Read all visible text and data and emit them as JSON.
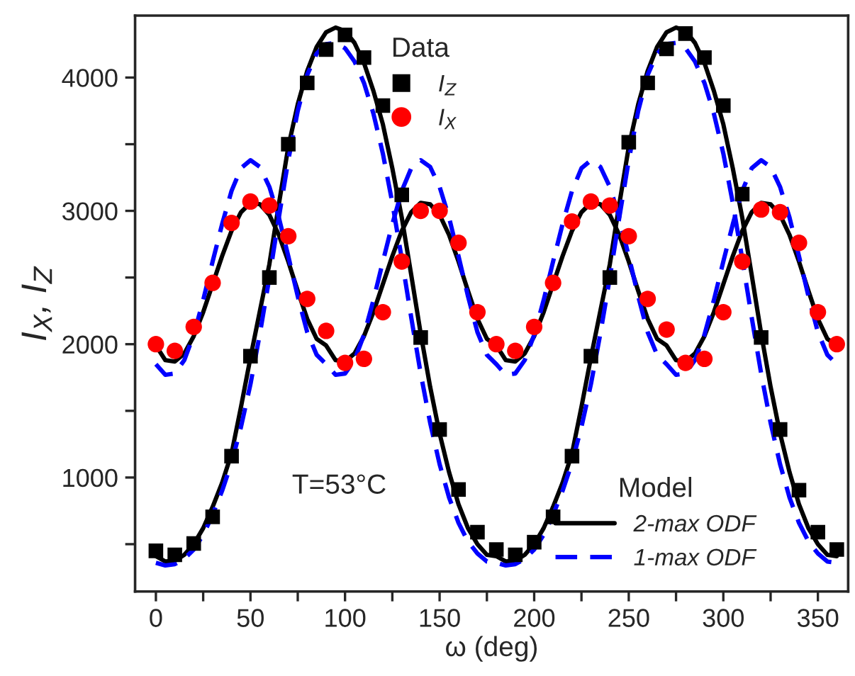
{
  "chart_data": {
    "type": "scatter",
    "xlabel": "ω (deg)",
    "ylabel": "I$_{X}$, I$_{Z}$",
    "annotations": [
      "T=53°C"
    ],
    "xlim": [
      -11,
      366
    ],
    "ylim": [
      145,
      4465
    ],
    "xticks": [
      0,
      {
        "value": 25,
        "label": null
      },
      50,
      {
        "value": 75,
        "label": null
      },
      100,
      {
        "value": 125,
        "label": null
      },
      150,
      {
        "value": 175,
        "label": null
      },
      200,
      {
        "value": 225,
        "label": null
      },
      250,
      {
        "value": 275,
        "label": null
      },
      300,
      {
        "value": 325,
        "label": null
      },
      350
    ],
    "yticks": [
      {
        "value": 500,
        "label": null
      },
      1000,
      {
        "value": 1500,
        "label": null
      },
      2000,
      {
        "value": 2500,
        "label": null
      },
      3000,
      {
        "value": 3500,
        "label": null
      },
      4000
    ],
    "legend": [
      "top",
      "bottom right"
    ],
    "legend_title": [
      "Data",
      "Model"
    ],
    "grid": false,
    "series": [
      {
        "name": "I$_{Z}$",
        "marker": "square",
        "color": "#000000",
        "x": [
          0,
          10,
          20,
          30,
          40,
          50,
          60,
          70,
          80,
          90,
          100,
          110,
          120,
          130,
          140,
          150,
          160,
          170,
          180,
          190,
          200,
          210,
          220,
          230,
          240,
          250,
          260,
          270,
          280,
          290,
          300,
          310,
          320,
          330,
          340,
          350,
          360
        ],
        "values": [
          450,
          420,
          505,
          705,
          1160,
          1910,
          2500,
          3500,
          3960,
          4210,
          4320,
          4150,
          3790,
          3120,
          2050,
          1360,
          910,
          590,
          460,
          420,
          515,
          705,
          1160,
          1910,
          2500,
          3515,
          3960,
          4215,
          4330,
          4150,
          3790,
          3125,
          2050,
          1360,
          905,
          590,
          460
        ]
      },
      {
        "name": "I$_{X}$",
        "marker": "circle",
        "color": "#ff0000",
        "x": [
          0,
          10,
          20,
          30,
          40,
          50,
          60,
          70,
          80,
          90,
          100,
          110,
          120,
          130,
          140,
          150,
          160,
          170,
          180,
          190,
          200,
          210,
          220,
          230,
          240,
          250,
          260,
          270,
          280,
          290,
          300,
          310,
          320,
          330,
          340,
          350,
          360
        ],
        "values": [
          2000,
          1950,
          2130,
          2460,
          2910,
          3070,
          3040,
          2810,
          2340,
          2100,
          1860,
          1890,
          2240,
          2620,
          3000,
          3000,
          2760,
          2240,
          2000,
          1950,
          2130,
          2460,
          2920,
          3070,
          3040,
          2810,
          2340,
          2110,
          1860,
          1890,
          2240,
          2620,
          3010,
          2990,
          2760,
          2240,
          2000
        ]
      },
      {
        "name": "2-max ODF",
        "type": "line",
        "line_style": "solid",
        "marker": "none",
        "color": "#000000",
        "x": [
          0,
          5,
          10,
          15,
          20,
          25,
          30,
          35,
          40,
          45,
          50,
          55,
          60,
          65,
          70,
          75,
          80,
          85,
          90,
          95,
          100,
          105,
          110,
          115,
          120,
          125,
          130,
          135,
          140,
          145,
          150,
          155,
          160,
          165,
          170,
          175,
          180,
          185,
          190,
          195,
          200,
          205,
          210,
          215,
          220,
          225,
          230,
          235,
          240,
          245,
          250,
          255,
          260,
          265,
          270,
          275,
          280,
          285,
          290,
          295,
          300,
          305,
          310,
          315,
          320,
          325,
          330,
          335,
          340,
          345,
          350,
          355,
          360
        ],
        "values": [
          410,
          370,
          375,
          420,
          500,
          620,
          780,
          960,
          1180,
          1530,
          1900,
          2250,
          2600,
          3050,
          3480,
          3800,
          4050,
          4230,
          4340,
          4375,
          4350,
          4260,
          4110,
          3900,
          3650,
          3320,
          2950,
          2520,
          2080,
          1680,
          1330,
          1040,
          800,
          620,
          500,
          420,
          410,
          370,
          375,
          420,
          500,
          620,
          780,
          960,
          1180,
          1530,
          1900,
          2250,
          2600,
          3050,
          3480,
          3800,
          4050,
          4230,
          4340,
          4375,
          4350,
          4260,
          4110,
          3900,
          3650,
          3320,
          2950,
          2520,
          2080,
          1680,
          1330,
          1040,
          800,
          620,
          500,
          420,
          410
        ]
      },
      {
        "name": null,
        "type": "line",
        "line_style": "solid",
        "marker": "none",
        "color": "#000000",
        "x": [
          0,
          5,
          10,
          15,
          20,
          25,
          30,
          35,
          40,
          45,
          50,
          55,
          60,
          65,
          70,
          75,
          80,
          85,
          90,
          95,
          100,
          105,
          110,
          115,
          120,
          125,
          130,
          135,
          140,
          145,
          150,
          155,
          160,
          165,
          170,
          175,
          180,
          185,
          190,
          195,
          200,
          205,
          210,
          215,
          220,
          225,
          230,
          235,
          240,
          245,
          250,
          255,
          260,
          265,
          270,
          275,
          280,
          285,
          290,
          295,
          300,
          305,
          310,
          315,
          320,
          325,
          330,
          335,
          340,
          345,
          350,
          355,
          360
        ],
        "values": [
          1990,
          1880,
          1870,
          1930,
          2060,
          2240,
          2450,
          2660,
          2850,
          2990,
          3060,
          3050,
          2970,
          2820,
          2620,
          2400,
          2190,
          2040,
          1990,
          1880,
          1870,
          1930,
          2060,
          2240,
          2450,
          2660,
          2850,
          2990,
          3060,
          3050,
          2970,
          2820,
          2620,
          2400,
          2190,
          2040,
          1990,
          1880,
          1870,
          1930,
          2060,
          2240,
          2450,
          2660,
          2850,
          2990,
          3060,
          3050,
          2970,
          2820,
          2620,
          2400,
          2190,
          2040,
          1990,
          1880,
          1870,
          1930,
          2060,
          2240,
          2450,
          2660,
          2850,
          2990,
          3060,
          3050,
          2970,
          2820,
          2620,
          2400,
          2190,
          2040,
          1990
        ]
      },
      {
        "name": "1-max ODF",
        "type": "line",
        "line_style": "dashed",
        "marker": "none",
        "color": "#0000ff",
        "x": [
          0,
          5,
          10,
          15,
          20,
          25,
          30,
          35,
          40,
          45,
          50,
          55,
          60,
          65,
          70,
          75,
          80,
          85,
          90,
          95,
          100,
          105,
          110,
          115,
          120,
          125,
          130,
          135,
          140,
          145,
          150,
          155,
          160,
          165,
          170,
          175,
          180,
          185,
          190,
          195,
          200,
          205,
          210,
          215,
          220,
          225,
          230,
          235,
          240,
          245,
          250,
          255,
          260,
          265,
          270,
          275,
          280,
          285,
          290,
          295,
          300,
          305,
          310,
          315,
          320,
          325,
          330,
          335,
          340,
          345,
          350,
          355,
          360
        ],
        "values": [
          360,
          340,
          350,
          390,
          460,
          570,
          720,
          900,
          1110,
          1380,
          1700,
          2080,
          2500,
          2950,
          3380,
          3750,
          4020,
          4180,
          4250,
          4260,
          4220,
          4120,
          3960,
          3730,
          3430,
          3060,
          2640,
          2200,
          1780,
          1410,
          1100,
          850,
          660,
          520,
          430,
          370,
          360,
          340,
          350,
          390,
          460,
          570,
          720,
          900,
          1110,
          1380,
          1700,
          2080,
          2500,
          2950,
          3380,
          3750,
          4020,
          4180,
          4250,
          4260,
          4220,
          4120,
          3960,
          3730,
          3430,
          3060,
          2640,
          2200,
          1780,
          1410,
          1100,
          850,
          660,
          520,
          430,
          370,
          360
        ]
      },
      {
        "name": null,
        "type": "line",
        "line_style": "dashed",
        "marker": "none",
        "color": "#0000ff",
        "x": [
          0,
          5,
          10,
          15,
          20,
          25,
          30,
          35,
          40,
          45,
          50,
          55,
          60,
          65,
          70,
          75,
          80,
          85,
          90,
          95,
          100,
          105,
          110,
          115,
          120,
          125,
          130,
          135,
          140,
          145,
          150,
          155,
          160,
          165,
          170,
          175,
          180,
          185,
          190,
          195,
          200,
          205,
          210,
          215,
          220,
          225,
          230,
          235,
          240,
          245,
          250,
          255,
          260,
          265,
          270,
          275,
          280,
          285,
          290,
          295,
          300,
          305,
          310,
          315,
          320,
          325,
          330,
          335,
          340,
          345,
          350,
          355,
          360
        ],
        "values": [
          1850,
          1770,
          1780,
          1880,
          2070,
          2330,
          2620,
          2900,
          3150,
          3320,
          3380,
          3330,
          3180,
          2950,
          2660,
          2360,
          2090,
          1920,
          1850,
          1770,
          1780,
          1880,
          2070,
          2330,
          2620,
          2900,
          3150,
          3320,
          3380,
          3330,
          3180,
          2950,
          2660,
          2360,
          2090,
          1920,
          1850,
          1770,
          1780,
          1880,
          2070,
          2330,
          2620,
          2900,
          3150,
          3320,
          3380,
          3330,
          3180,
          2950,
          2660,
          2360,
          2090,
          1920,
          1850,
          1770,
          1780,
          1880,
          2070,
          2330,
          2620,
          2900,
          3150,
          3320,
          3380,
          3330,
          3180,
          2950,
          2660,
          2360,
          2090,
          1920,
          1850
        ]
      }
    ]
  }
}
